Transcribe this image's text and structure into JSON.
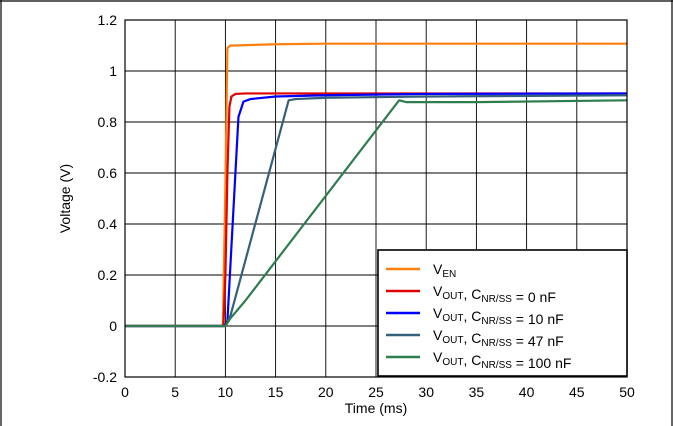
{
  "chart_data": {
    "type": "line",
    "xlabel": "Time (ms)",
    "ylabel": "Voltage (V)",
    "xlim": [
      0,
      50
    ],
    "ylim": [
      -0.2,
      1.2
    ],
    "x_ticks": [
      "0",
      "5",
      "10",
      "15",
      "20",
      "25",
      "30",
      "35",
      "40",
      "45",
      "50"
    ],
    "y_ticks": [
      "-0.2",
      "0",
      "0.2",
      "0.4",
      "0.6",
      "0.8",
      "1",
      "1.2"
    ],
    "grid": true,
    "legend_position": "bottom-right",
    "series": [
      {
        "name": "VEN",
        "label_parts": [
          {
            "t": "V"
          },
          {
            "t": "EN",
            "sub": true
          }
        ],
        "color": "#ff7f0e",
        "x": [
          0,
          9.75,
          10.0,
          10.2,
          10.5,
          11,
          15,
          20,
          30,
          40,
          50
        ],
        "y": [
          0,
          0,
          0.55,
          1.09,
          1.1,
          1.1,
          1.105,
          1.107,
          1.107,
          1.107,
          1.107
        ]
      },
      {
        "name": "VOUT, CNR/SS = 0 nF",
        "label_parts": [
          {
            "t": "V"
          },
          {
            "t": "OUT",
            "sub": true
          },
          {
            "t": ", C"
          },
          {
            "t": "NR/SS",
            "sub": true
          },
          {
            "t": " = 0 nF"
          }
        ],
        "color": "#e00000",
        "x": [
          0,
          9.8,
          10.0,
          10.2,
          10.4,
          10.6,
          11,
          12,
          20,
          30,
          50
        ],
        "y": [
          0,
          0,
          0.2,
          0.6,
          0.86,
          0.9,
          0.91,
          0.912,
          0.912,
          0.912,
          0.912
        ]
      },
      {
        "name": "VOUT, CNR/SS = 10 nF",
        "label_parts": [
          {
            "t": "V"
          },
          {
            "t": "OUT",
            "sub": true
          },
          {
            "t": ", C"
          },
          {
            "t": "NR/SS",
            "sub": true
          },
          {
            "t": " = 10 nF"
          }
        ],
        "color": "#0000ff",
        "x": [
          0,
          9.9,
          10.2,
          11.3,
          11.8,
          12.5,
          15,
          20,
          30,
          50
        ],
        "y": [
          0,
          0,
          0.02,
          0.82,
          0.88,
          0.89,
          0.9,
          0.905,
          0.91,
          0.912
        ]
      },
      {
        "name": "VOUT, CNR/SS = 47 nF",
        "label_parts": [
          {
            "t": "V"
          },
          {
            "t": "OUT",
            "sub": true
          },
          {
            "t": ", C"
          },
          {
            "t": "NR/SS",
            "sub": true
          },
          {
            "t": " = 47 nF"
          }
        ],
        "color": "#34607a",
        "x": [
          0,
          10.0,
          10.5,
          16.3,
          17,
          20,
          30,
          50
        ],
        "y": [
          0,
          0,
          0.04,
          0.885,
          0.89,
          0.895,
          0.9,
          0.905
        ]
      },
      {
        "name": "VOUT, CNR/SS = 100 nF",
        "label_parts": [
          {
            "t": "V"
          },
          {
            "t": "OUT",
            "sub": true
          },
          {
            "t": ", C"
          },
          {
            "t": "NR/SS",
            "sub": true
          },
          {
            "t": " = 100 nF"
          }
        ],
        "color": "#2e7d4f",
        "x": [
          0,
          10.0,
          10.5,
          12,
          27.3,
          28,
          35,
          50
        ],
        "y": [
          0,
          0,
          0.03,
          0.1,
          0.885,
          0.878,
          0.878,
          0.885
        ]
      }
    ]
  }
}
